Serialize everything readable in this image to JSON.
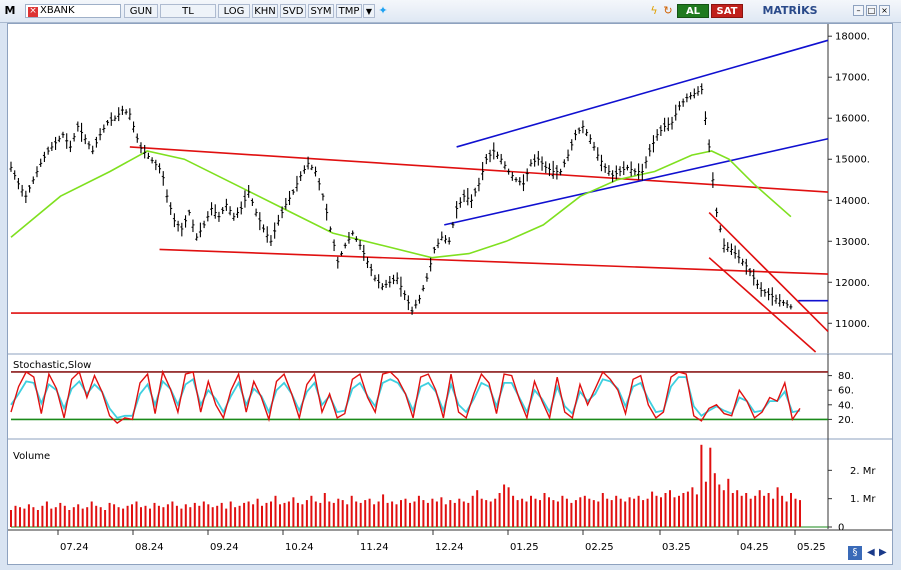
{
  "toolbar": {
    "menu_icon": "M",
    "close_icon": "close-icon",
    "symbol": "XBANK",
    "period": "GUN",
    "currency": "TL",
    "log": "LOG",
    "khn": "KHN",
    "svd": "SVD",
    "sym": "SYM",
    "tmp": "TMP",
    "buy": "AL",
    "sell": "SAT",
    "brand": "MATRİKS",
    "colors": {
      "buy": "#1f7a1f",
      "sell": "#c0201c",
      "brand": "#2a4a8a"
    }
  },
  "chart_data": [
    {
      "type": "candlestick",
      "x_ticks": [
        "07.24",
        "08.24",
        "09.24",
        "10.24",
        "11.24",
        "12.24",
        "01.25",
        "02.25",
        "03.25",
        "04.25",
        "05.25"
      ],
      "y_ticks": [
        "11000.",
        "12000.",
        "13000.",
        "14000.",
        "15000.",
        "16000.",
        "17000.",
        "18000."
      ],
      "ylim": [
        10300,
        18200
      ],
      "grid": false,
      "colors": {
        "price": "#000000",
        "sma": "#7fe01f",
        "support": "#e01010",
        "channel": "#1010d0",
        "last_price": "#1010d0"
      },
      "price_points": [
        [
          0,
          14800
        ],
        [
          3,
          14400
        ],
        [
          6,
          14100
        ],
        [
          9,
          14500
        ],
        [
          12,
          14900
        ],
        [
          15,
          15200
        ],
        [
          18,
          15400
        ],
        [
          21,
          15600
        ],
        [
          24,
          15300
        ],
        [
          27,
          15800
        ],
        [
          30,
          15500
        ],
        [
          33,
          15200
        ],
        [
          36,
          15600
        ],
        [
          39,
          15900
        ],
        [
          42,
          16000
        ],
        [
          45,
          16200
        ],
        [
          48,
          16100
        ],
        [
          50,
          15700
        ],
        [
          52,
          15300
        ],
        [
          55,
          15100
        ],
        [
          58,
          14900
        ],
        [
          61,
          14700
        ],
        [
          63,
          14100
        ],
        [
          66,
          13500
        ],
        [
          69,
          13300
        ],
        [
          72,
          13700
        ],
        [
          75,
          13100
        ],
        [
          78,
          13400
        ],
        [
          81,
          13800
        ],
        [
          84,
          13600
        ],
        [
          87,
          13900
        ],
        [
          90,
          13600
        ],
        [
          93,
          13800
        ],
        [
          96,
          14200
        ],
        [
          99,
          13700
        ],
        [
          102,
          13300
        ],
        [
          105,
          13000
        ],
        [
          108,
          13500
        ],
        [
          111,
          13900
        ],
        [
          114,
          14200
        ],
        [
          117,
          14600
        ],
        [
          120,
          14900
        ],
        [
          123,
          14700
        ],
        [
          126,
          14100
        ],
        [
          129,
          13300
        ],
        [
          132,
          12500
        ],
        [
          135,
          12900
        ],
        [
          138,
          13200
        ],
        [
          141,
          12900
        ],
        [
          144,
          12500
        ],
        [
          147,
          12100
        ],
        [
          150,
          11900
        ],
        [
          153,
          12000
        ],
        [
          156,
          12100
        ],
        [
          159,
          11700
        ],
        [
          162,
          11300
        ],
        [
          165,
          11600
        ],
        [
          168,
          12100
        ],
        [
          171,
          12800
        ],
        [
          174,
          13100
        ],
        [
          177,
          13000
        ],
        [
          180,
          13800
        ],
        [
          183,
          14100
        ],
        [
          186,
          14000
        ],
        [
          189,
          14400
        ],
        [
          192,
          15000
        ],
        [
          195,
          15200
        ],
        [
          198,
          15000
        ],
        [
          201,
          14700
        ],
        [
          204,
          14500
        ],
        [
          207,
          14400
        ],
        [
          210,
          14900
        ],
        [
          213,
          15000
        ],
        [
          216,
          14800
        ],
        [
          219,
          14700
        ],
        [
          222,
          14700
        ],
        [
          225,
          15100
        ],
        [
          228,
          15600
        ],
        [
          231,
          15800
        ],
        [
          234,
          15500
        ],
        [
          237,
          15100
        ],
        [
          240,
          14800
        ],
        [
          243,
          14600
        ],
        [
          246,
          14700
        ],
        [
          249,
          14800
        ],
        [
          252,
          14700
        ],
        [
          255,
          14700
        ],
        [
          258,
          15200
        ],
        [
          261,
          15600
        ],
        [
          264,
          15800
        ],
        [
          267,
          15900
        ],
        [
          270,
          16300
        ],
        [
          273,
          16500
        ],
        [
          276,
          16600
        ],
        [
          279,
          16700
        ],
        [
          282,
          15300
        ],
        [
          285,
          13700
        ],
        [
          288,
          12900
        ],
        [
          291,
          12800
        ],
        [
          294,
          12600
        ],
        [
          297,
          12400
        ],
        [
          300,
          12100
        ],
        [
          303,
          11800
        ],
        [
          306,
          11700
        ],
        [
          309,
          11600
        ],
        [
          312,
          11500
        ],
        [
          315,
          11400
        ]
      ],
      "sma_points": [
        [
          0,
          13100
        ],
        [
          20,
          14100
        ],
        [
          40,
          14700
        ],
        [
          55,
          15200
        ],
        [
          70,
          15000
        ],
        [
          90,
          14400
        ],
        [
          110,
          13800
        ],
        [
          130,
          13200
        ],
        [
          150,
          12900
        ],
        [
          170,
          12600
        ],
        [
          185,
          12700
        ],
        [
          200,
          13000
        ],
        [
          215,
          13400
        ],
        [
          230,
          14100
        ],
        [
          245,
          14500
        ],
        [
          260,
          14700
        ],
        [
          275,
          15100
        ],
        [
          283,
          15200
        ],
        [
          290,
          15000
        ],
        [
          300,
          14400
        ],
        [
          315,
          13600
        ]
      ],
      "trend_lines": [
        {
          "color": "red",
          "from": [
            48,
            15300
          ],
          "to": [
            330,
            14200
          ]
        },
        {
          "color": "red",
          "from": [
            60,
            12800
          ],
          "to": [
            330,
            12200
          ]
        },
        {
          "color": "red",
          "from": [
            0,
            11250
          ],
          "to": [
            330,
            11250
          ]
        },
        {
          "color": "red",
          "from": [
            282,
            13700
          ],
          "to": [
            330,
            10800
          ]
        },
        {
          "color": "red",
          "from": [
            282,
            12600
          ],
          "to": [
            325,
            10300
          ]
        },
        {
          "color": "blue",
          "from": [
            175,
            13400
          ],
          "to": [
            330,
            15500
          ]
        },
        {
          "color": "blue",
          "from": [
            180,
            15300
          ],
          "to": [
            330,
            17900
          ]
        },
        {
          "color": "blue",
          "from": [
            318,
            11550
          ],
          "to": [
            330,
            11550
          ]
        }
      ]
    },
    {
      "type": "line",
      "title": "Stochastic,Slow",
      "y_ticks": [
        "20.",
        "40.",
        "60.",
        "80."
      ],
      "ylim": [
        0,
        100
      ],
      "levels": {
        "upper": 85,
        "lower": 20
      },
      "colors": {
        "percent_k": "#e01010",
        "percent_d": "#3ed0e0",
        "upper": "#8b1a1a",
        "lower": "#1a8a1a"
      },
      "percent_k": [
        30,
        65,
        85,
        78,
        28,
        82,
        62,
        22,
        75,
        85,
        50,
        80,
        58,
        25,
        15,
        22,
        20,
        70,
        82,
        28,
        85,
        62,
        30,
        82,
        85,
        30,
        72,
        40,
        22,
        60,
        82,
        30,
        72,
        50,
        20,
        72,
        82,
        55,
        22,
        68,
        82,
        30,
        55,
        22,
        28,
        75,
        82,
        50,
        30,
        82,
        85,
        75,
        55,
        22,
        78,
        82,
        60,
        22,
        82,
        30,
        22,
        55,
        82,
        70,
        28,
        82,
        80,
        48,
        22,
        72,
        45,
        22,
        78,
        30,
        22,
        68,
        40,
        62,
        85,
        75,
        60,
        28,
        75,
        80,
        40,
        22,
        30,
        78,
        85,
        82,
        25,
        18,
        35,
        40,
        28,
        25,
        60,
        45,
        22,
        30,
        50,
        45,
        70,
        20,
        35
      ],
      "percent_d": [
        40,
        55,
        72,
        70,
        42,
        68,
        60,
        35,
        62,
        72,
        55,
        68,
        58,
        35,
        22,
        25,
        25,
        55,
        68,
        40,
        72,
        62,
        40,
        68,
        75,
        40,
        60,
        48,
        30,
        52,
        70,
        40,
        62,
        52,
        30,
        60,
        70,
        55,
        32,
        58,
        70,
        40,
        52,
        30,
        32,
        62,
        70,
        52,
        38,
        70,
        75,
        70,
        55,
        32,
        65,
        70,
        58,
        32,
        68,
        40,
        30,
        48,
        70,
        65,
        38,
        70,
        70,
        50,
        30,
        60,
        48,
        30,
        65,
        38,
        28,
        58,
        45,
        55,
        75,
        72,
        62,
        38,
        65,
        70,
        48,
        30,
        32,
        65,
        78,
        78,
        38,
        25,
        32,
        38,
        32,
        28,
        50,
        45,
        30,
        32,
        45,
        45,
        58,
        30,
        32
      ]
    },
    {
      "type": "bar",
      "title": "Volume",
      "y_ticks": [
        "0",
        "1. Mr",
        "2. Mr"
      ],
      "ylim": [
        0,
        3.0
      ],
      "unit": "Mr",
      "colors": {
        "bar": "#e01010"
      },
      "values": [
        0.6,
        0.75,
        0.7,
        0.65,
        0.8,
        0.7,
        0.6,
        0.75,
        0.9,
        0.65,
        0.7,
        0.85,
        0.75,
        0.6,
        0.7,
        0.8,
        0.65,
        0.7,
        0.9,
        0.75,
        0.7,
        0.6,
        0.85,
        0.8,
        0.7,
        0.65,
        0.75,
        0.8,
        0.9,
        0.7,
        0.75,
        0.65,
        0.85,
        0.75,
        0.7,
        0.8,
        0.9,
        0.75,
        0.65,
        0.8,
        0.7,
        0.85,
        0.75,
        0.9,
        0.8,
        0.7,
        0.75,
        0.85,
        0.65,
        0.9,
        0.7,
        0.75,
        0.85,
        0.9,
        0.8,
        1.0,
        0.75,
        0.85,
        0.9,
        1.1,
        0.8,
        0.85,
        0.9,
        1.05,
        0.85,
        0.8,
        0.95,
        1.1,
        0.9,
        0.85,
        1.2,
        0.9,
        0.85,
        1.0,
        0.95,
        0.8,
        1.1,
        0.9,
        0.85,
        0.95,
        1.0,
        0.8,
        0.9,
        1.15,
        0.85,
        0.9,
        0.8,
        0.95,
        1.0,
        0.85,
        0.9,
        1.1,
        0.95,
        0.85,
        1.0,
        0.9,
        1.05,
        0.8,
        0.95,
        0.85,
        1.0,
        0.9,
        0.85,
        1.1,
        1.3,
        1.0,
        0.95,
        0.9,
        1.0,
        1.2,
        1.5,
        1.4,
        1.1,
        0.95,
        1.0,
        0.9,
        1.1,
        1.0,
        0.95,
        1.2,
        1.05,
        0.95,
        0.9,
        1.1,
        1.0,
        0.85,
        0.95,
        1.05,
        1.1,
        1.0,
        0.95,
        0.9,
        1.2,
        1.0,
        0.95,
        1.1,
        1.0,
        0.9,
        1.05,
        1.0,
        1.1,
        0.95,
        1.0,
        1.25,
        1.1,
        1.05,
        1.2,
        1.3,
        1.05,
        1.1,
        1.2,
        1.25,
        1.4,
        1.15,
        2.9,
        1.6,
        2.8,
        1.9,
        1.5,
        1.3,
        1.7,
        1.2,
        1.3,
        1.1,
        1.2,
        1.0,
        1.1,
        1.3,
        1.1,
        1.2,
        1.0,
        1.4,
        1.1,
        0.9,
        1.2,
        1.0,
        0.95
      ]
    }
  ]
}
